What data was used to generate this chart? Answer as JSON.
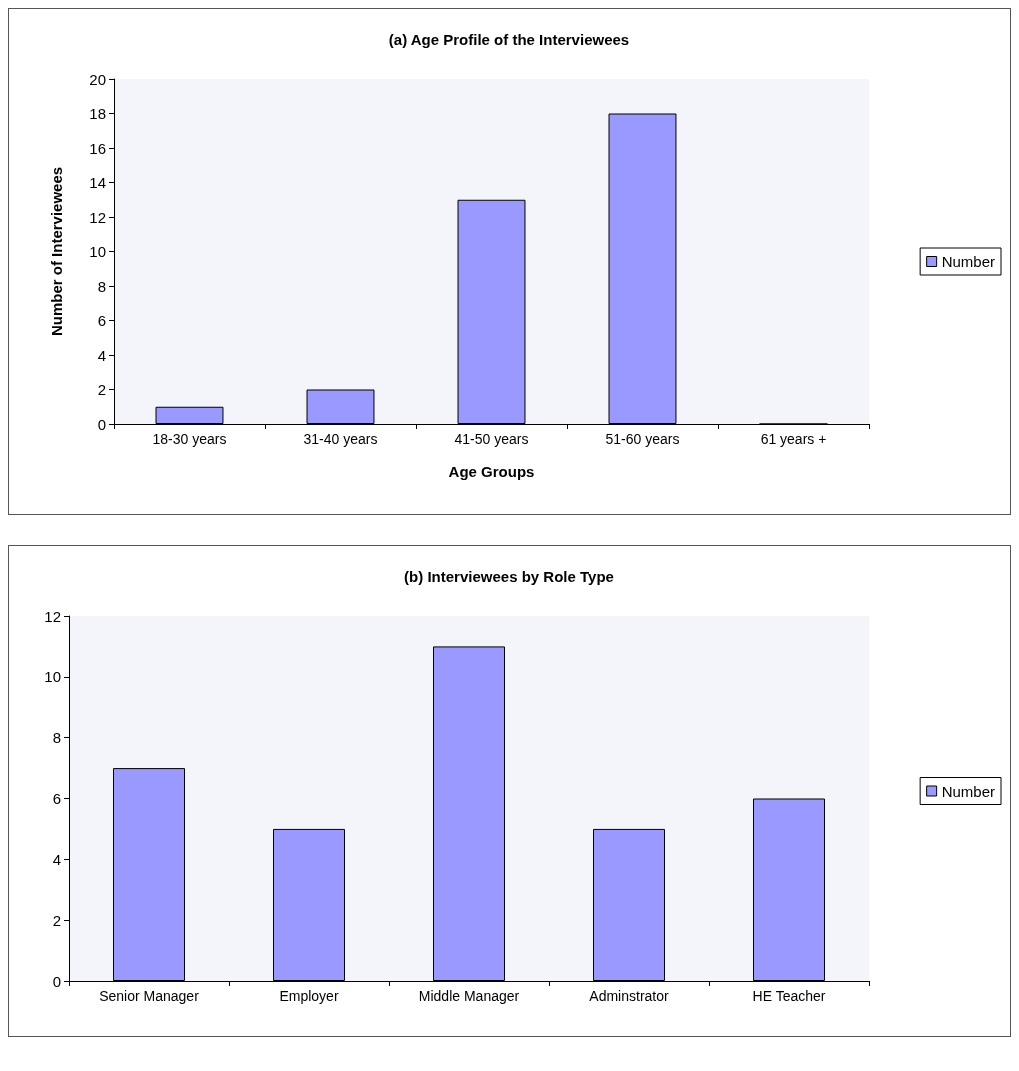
{
  "chart_data": [
    {
      "type": "bar",
      "title": "(a) Age Profile of the Interviewees",
      "xlabel": "Age Groups",
      "ylabel": "Number of Interviewees",
      "categories": [
        "18-30 years",
        "31-40 years",
        "41-50 years",
        "51-60 years",
        "61 years +"
      ],
      "series": [
        {
          "name": "Number",
          "color": "#9999ff",
          "values": [
            1,
            2,
            13,
            18,
            0
          ]
        }
      ],
      "ylim": [
        0,
        20
      ],
      "yticks": [
        0,
        2,
        4,
        6,
        8,
        10,
        12,
        14,
        16,
        18,
        20
      ],
      "legend": "right"
    },
    {
      "type": "bar",
      "title": "(b) Interviewees by Role Type",
      "categories": [
        "Senior Manager",
        "Employer",
        "Middle Manager",
        "Adminstrator",
        "HE Teacher"
      ],
      "series": [
        {
          "name": "Number",
          "color": "#9999ff",
          "values": [
            7,
            5,
            11,
            5,
            6
          ]
        }
      ],
      "ylim": [
        0,
        12
      ],
      "yticks": [
        0,
        2,
        4,
        6,
        8,
        10,
        12
      ],
      "legend": "right"
    }
  ]
}
